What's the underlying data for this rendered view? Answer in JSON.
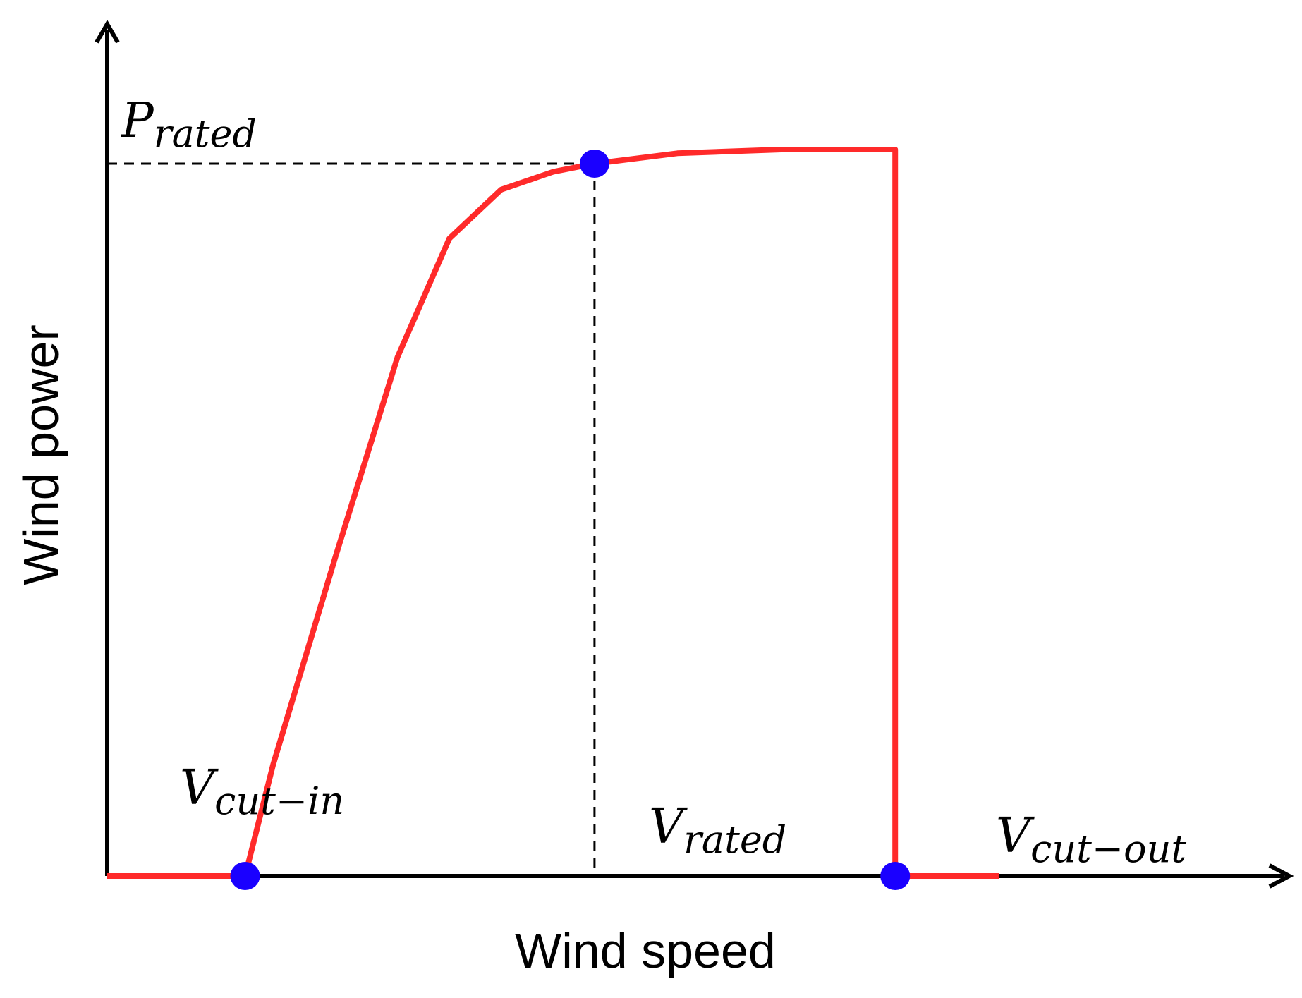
{
  "chart_data": {
    "type": "line",
    "title": "",
    "xlabel": "Wind speed",
    "ylabel": "Wind power",
    "grid": false,
    "legend": "none",
    "xlim": [
      0,
      10
    ],
    "ylim": [
      0,
      10
    ],
    "colors": {
      "curve": "#ff2a2a",
      "points": "#1a00ff",
      "axes": "#000000",
      "guides": "#000000"
    },
    "series": [
      {
        "x": [
          0.0,
          1.33,
          1.6,
          2.2,
          2.8,
          3.3,
          3.8,
          4.3,
          4.7,
          5.5,
          6.5,
          7.5,
          7.6,
          7.6,
          7.6,
          8.6
        ],
        "y": [
          0.0,
          0.0,
          1.5,
          4.3,
          7.0,
          8.6,
          9.26,
          9.5,
          9.61,
          9.75,
          9.8,
          9.8,
          9.8,
          5.0,
          0.0,
          0.0
        ]
      }
    ],
    "annotations": {
      "p_rated": {
        "base": "P",
        "sub": "rated",
        "value": 9.61
      },
      "v_cut_in": {
        "base": "V",
        "sub": "cut−in",
        "value": 1.33
      },
      "v_rated": {
        "base": "V",
        "sub": "rated",
        "value": 4.7
      },
      "v_cut_out": {
        "base": "V",
        "sub": "cut−out",
        "value": 7.6
      }
    },
    "markers": [
      {
        "x": 1.33,
        "y": 0.0
      },
      {
        "x": 4.7,
        "y": 9.61
      },
      {
        "x": 7.6,
        "y": 0.0
      }
    ]
  }
}
